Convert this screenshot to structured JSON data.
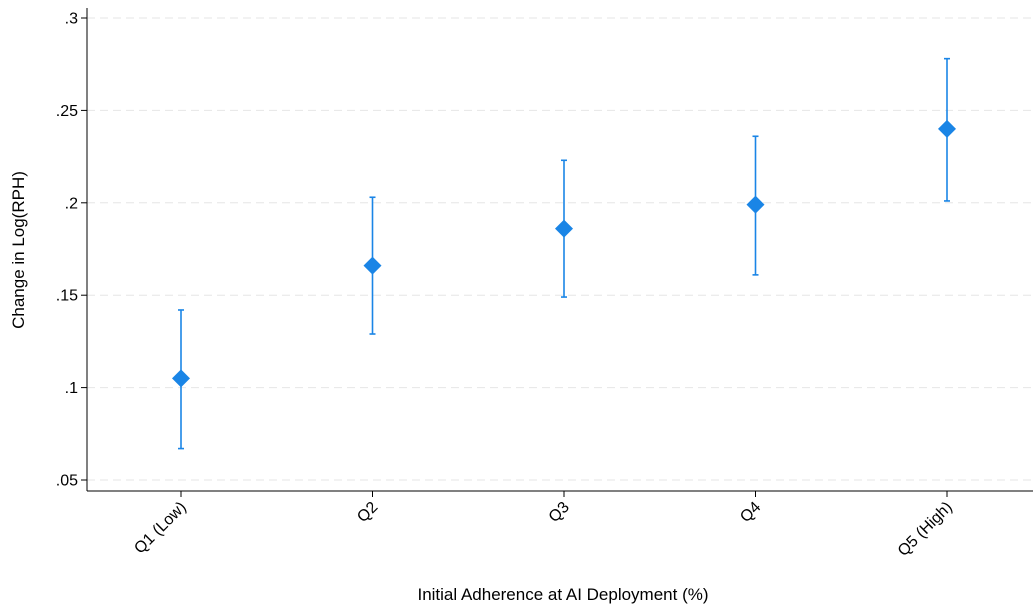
{
  "chart_data": {
    "type": "scatter",
    "title": "",
    "xlabel": "Initial Adherence at AI Deployment (%)",
    "ylabel": "Change in Log(RPH)",
    "categories": [
      "Q1 (Low)",
      "Q2",
      "Q3",
      "Q4",
      "Q5 (High)"
    ],
    "values": [
      0.105,
      0.166,
      0.186,
      0.199,
      0.24
    ],
    "ci_lower": [
      0.067,
      0.129,
      0.149,
      0.161,
      0.201
    ],
    "ci_upper": [
      0.142,
      0.203,
      0.223,
      0.236,
      0.278
    ],
    "ylim": [
      0.05,
      0.3
    ],
    "yticks": [
      0.05,
      0.1,
      0.15,
      0.2,
      0.25,
      0.3
    ],
    "ytick_labels": [
      ".05",
      ".1",
      ".15",
      ".2",
      ".25",
      ".3"
    ],
    "grid": true,
    "legend": "none",
    "marker": "diamond",
    "color": "#1a85e6",
    "grid_color": "#e6e6e6"
  }
}
